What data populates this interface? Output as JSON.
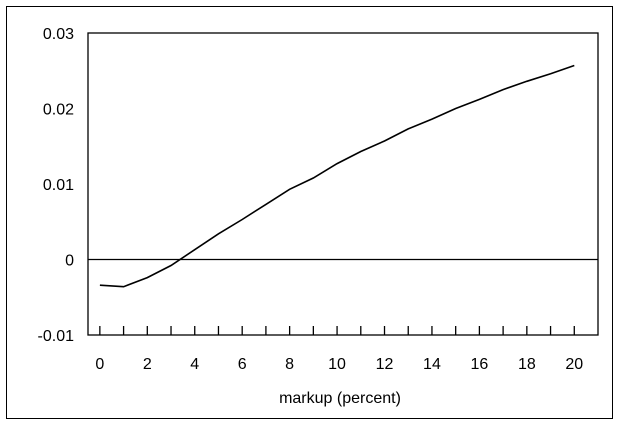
{
  "chart_data": {
    "type": "line",
    "title": "",
    "xlabel": "markup (percent)",
    "ylabel": "",
    "xlim": [
      -0.5,
      21
    ],
    "ylim": [
      -0.01,
      0.03
    ],
    "x_ticks": [
      0,
      2,
      4,
      6,
      8,
      10,
      12,
      14,
      16,
      18,
      20
    ],
    "x_tick_labels": [
      "0",
      "2",
      "4",
      "6",
      "8",
      "10",
      "12",
      "14",
      "16",
      "18",
      "20"
    ],
    "y_ticks": [
      -0.01,
      0,
      0.01,
      0.02,
      0.03
    ],
    "y_tick_labels": [
      "-0.01",
      "0",
      "0.01",
      "0.02",
      "0.03"
    ],
    "zero_line": true,
    "grid": false,
    "colors": {
      "line": "#000000",
      "frame": "#000000",
      "background": "#ffffff"
    },
    "series": [
      {
        "x": [
          0,
          1,
          2,
          3,
          4,
          5,
          6,
          7,
          8,
          9,
          10,
          11,
          12,
          13,
          14,
          15,
          16,
          17,
          18,
          19,
          20
        ],
        "y": [
          -0.0034,
          -0.0036,
          -0.0024,
          -0.0008,
          0.0013,
          0.0034,
          0.0053,
          0.0073,
          0.0093,
          0.0108,
          0.0127,
          0.0143,
          0.0157,
          0.0173,
          0.0186,
          0.02,
          0.0212,
          0.0225,
          0.0236,
          0.0246,
          0.0257
        ]
      }
    ]
  }
}
